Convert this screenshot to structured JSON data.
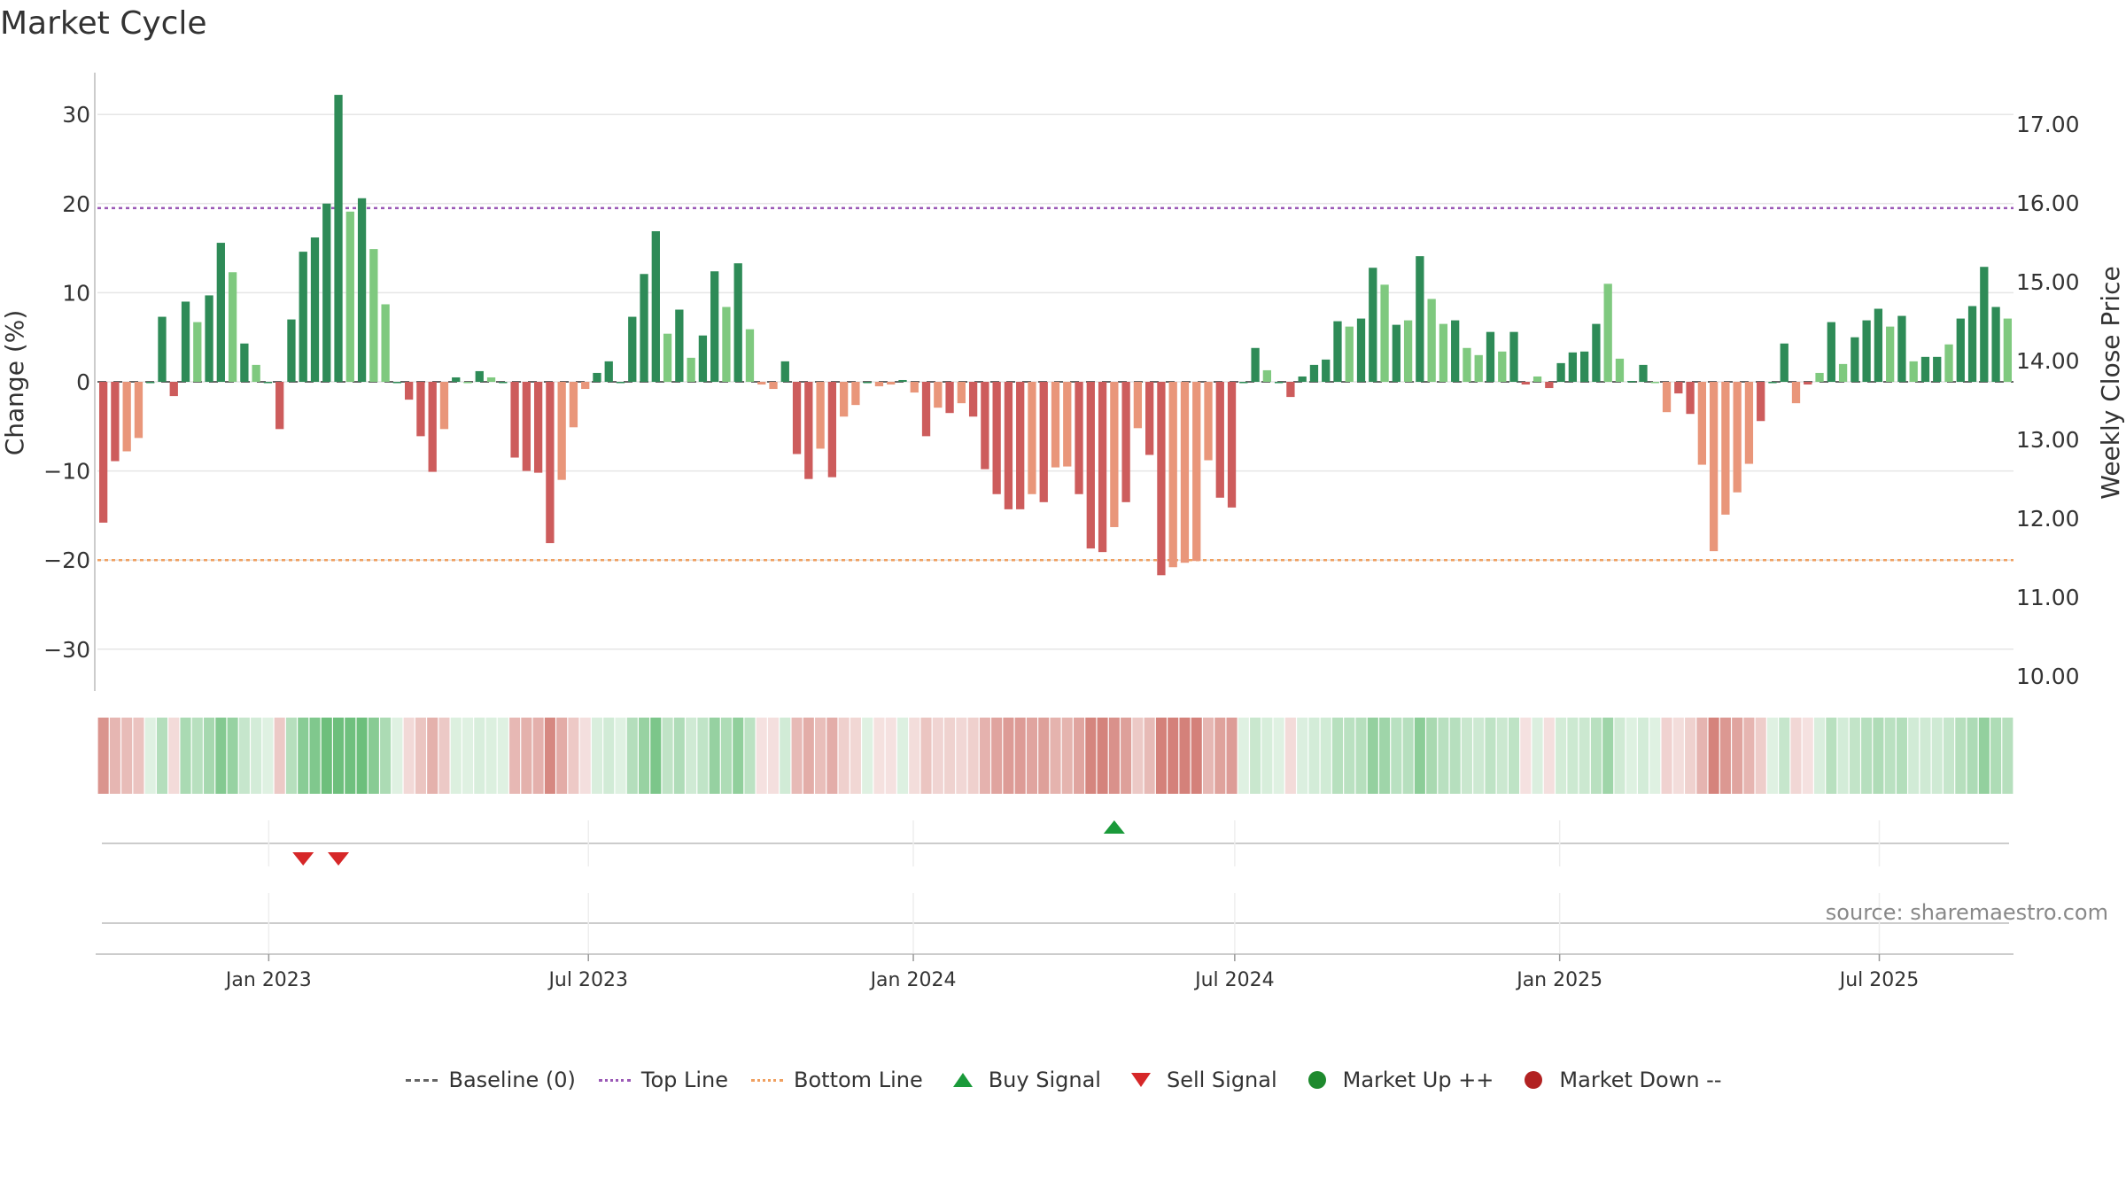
{
  "title": "Market Cycle",
  "source": "source: sharemaestro.com",
  "chart_data": {
    "type": "bar",
    "title": "Market Cycle",
    "ylabel_left": "Change (%)",
    "ylabel_right": "Weekly Close Price",
    "ylim_left": [
      -35,
      35
    ],
    "yticks_left": [
      30,
      20,
      10,
      0,
      -10,
      -20,
      -30
    ],
    "yticks_right": [
      "17.00",
      "16.00",
      "15.00",
      "14.00",
      "13.00",
      "12.00",
      "11.00",
      "10.00"
    ],
    "x_start": "2022-09-26",
    "x_end": "2025-09-15",
    "x_ticks": [
      {
        "label": "Jan 2023",
        "date": "2023-01-01"
      },
      {
        "label": "Jul 2023",
        "date": "2023-07-01"
      },
      {
        "label": "Jan 2024",
        "date": "2024-01-01"
      },
      {
        "label": "Jul 2024",
        "date": "2024-07-01"
      },
      {
        "label": "Jan 2025",
        "date": "2025-01-01"
      },
      {
        "label": "Jul 2025",
        "date": "2025-07-01"
      }
    ],
    "top_line": 19.5,
    "bottom_line": -20,
    "grid": true,
    "values": [
      -15.8,
      -8.9,
      -7.8,
      -6.3,
      0,
      7.3,
      -1.6,
      9,
      6.7,
      9.7,
      15.6,
      12.3,
      4.3,
      1.9,
      0,
      -5.3,
      7,
      14.6,
      16.2,
      20,
      32.2,
      19.1,
      20.6,
      14.9,
      8.7,
      0,
      -2,
      -6.1,
      -10.1,
      -5.3,
      0.5,
      0,
      1.2,
      0.5,
      0,
      -8.5,
      -10,
      -10.2,
      -18.1,
      -11,
      -5.1,
      -0.8,
      1,
      2.3,
      0,
      7.3,
      12.1,
      16.9,
      5.4,
      8.1,
      2.7,
      5.2,
      12.4,
      8.4,
      13.3,
      5.9,
      -0.3,
      -0.8,
      2.3,
      -8.1,
      -10.9,
      -7.5,
      -10.7,
      -3.9,
      -2.6,
      0,
      -0.5,
      -0.3,
      0.2,
      -1.2,
      -6.1,
      -2.9,
      -3.5,
      -2.4,
      -3.9,
      -9.8,
      -12.6,
      -14.3,
      -14.3,
      -12.6,
      -13.5,
      -9.6,
      -9.5,
      -12.6,
      -18.7,
      -19.1,
      -16.3,
      -13.5,
      -5.2,
      -8.2,
      -21.7,
      -20.8,
      -20.3,
      -20.1,
      -8.8,
      -13,
      -14.1,
      0,
      3.8,
      1.3,
      0,
      -1.7,
      0.6,
      1.9,
      2.5,
      6.8,
      6.2,
      7.1,
      12.8,
      10.9,
      6.4,
      6.9,
      14.1,
      9.3,
      6.5,
      6.9,
      3.8,
      3,
      5.6,
      3.4,
      5.6,
      -0.3,
      0.6,
      -0.7,
      2.1,
      3.3,
      3.4,
      6.5,
      11,
      2.6,
      0.1,
      1.9,
      0,
      -3.4,
      -1.3,
      -3.6,
      -9.3,
      -19,
      -14.9,
      -12.4,
      -9.2,
      -4.4,
      0,
      4.3,
      -2.4,
      -0.3,
      1,
      6.7,
      2,
      5,
      6.9,
      8.2,
      6.2,
      7.4,
      2.3,
      2.8,
      2.8,
      4.2,
      7.1,
      8.5,
      12.9,
      8.4,
      7.1
    ],
    "strong_flags": [
      1,
      1,
      0,
      0,
      1,
      1,
      1,
      1,
      0,
      1,
      1,
      0,
      1,
      0,
      1,
      1,
      1,
      1,
      1,
      1,
      1,
      0,
      1,
      0,
      0,
      1,
      1,
      1,
      1,
      0,
      1,
      0,
      1,
      0,
      1,
      1,
      1,
      1,
      1,
      0,
      0,
      0,
      1,
      1,
      1,
      1,
      1,
      1,
      0,
      1,
      0,
      1,
      1,
      0,
      1,
      0,
      0,
      0,
      1,
      1,
      1,
      0,
      1,
      0,
      0,
      1,
      0,
      0,
      1,
      0,
      1,
      0,
      1,
      0,
      1,
      1,
      1,
      1,
      1,
      0,
      1,
      0,
      0,
      1,
      1,
      1,
      0,
      1,
      0,
      1,
      1,
      0,
      0,
      0,
      0,
      1,
      1,
      1,
      1,
      0,
      1,
      1,
      1,
      1,
      1,
      1,
      0,
      1,
      1,
      0,
      1,
      0,
      1,
      0,
      0,
      1,
      0,
      0,
      1,
      0,
      1,
      1,
      0,
      1,
      1,
      1,
      1,
      1,
      0,
      0,
      1,
      1,
      0,
      0,
      1,
      1,
      0,
      0,
      0,
      0,
      0,
      1,
      1,
      1,
      0,
      1,
      0,
      1,
      0,
      1,
      1,
      1,
      0,
      1,
      0,
      1,
      1,
      0,
      1,
      1,
      1,
      1,
      0
    ],
    "buy_signals": [
      {
        "week": 86
      }
    ],
    "sell_signals": [
      {
        "week": 17
      },
      {
        "week": 20
      }
    ],
    "colors": {
      "up_strong": "#2e8b57",
      "up_weak": "#7fc97f",
      "down_strong": "#cd5c5c",
      "down_weak": "#e9967a",
      "top_line": "#9b59b6",
      "bottom_line": "#f0a060",
      "buy": "#1a9a3a",
      "sell": "#d62728"
    },
    "legend": [
      {
        "label": "Baseline (0)",
        "symbol": "dash"
      },
      {
        "label": "Top Line",
        "symbol": "dot-purple"
      },
      {
        "label": "Bottom Line",
        "symbol": "dot-orange"
      },
      {
        "label": "Buy Signal",
        "symbol": "up"
      },
      {
        "label": "Sell Signal",
        "symbol": "down"
      },
      {
        "label": "Market Up ++",
        "symbol": "circle-green"
      },
      {
        "label": "Market Down --",
        "symbol": "circle-red"
      }
    ],
    "legend_position": "bottom"
  }
}
